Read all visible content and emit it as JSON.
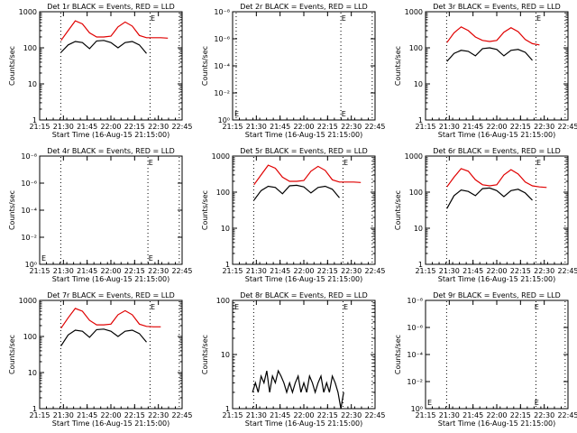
{
  "chart_data": [
    {
      "type": "line",
      "title": "Det 1r BLACK = Events, RED = LLD",
      "ylabel": "Counts/sec",
      "xlabel": "Start Time (16-Aug-15 21:15:00)",
      "scale": "log",
      "ylim": [
        1,
        1000
      ],
      "yticks": [
        "1",
        "10",
        "100",
        "1000"
      ],
      "xticks": [
        "21:15",
        "21:30",
        "21:45",
        "22:00",
        "22:15",
        "22:30",
        "22:45"
      ],
      "xlim": [
        0,
        100
      ],
      "vlines": [
        14.8,
        77.5,
        98
      ],
      "marker": "E",
      "marker_x": 77.2,
      "series": [
        {
          "name": "RED = LLD",
          "color": "#e00000",
          "x": [
            0,
            5,
            10,
            15,
            20,
            25,
            30,
            35,
            40,
            45,
            50,
            55,
            60,
            65,
            70,
            75,
            80,
            85,
            90,
            95,
            100
          ],
          "y": [
            null,
            null,
            null,
            160,
            300,
            560,
            460,
            260,
            200,
            200,
            210,
            380,
            520,
            400,
            220,
            190,
            190,
            190,
            185,
            null,
            null
          ]
        },
        {
          "name": "BLACK = Events",
          "color": "#000000",
          "x": [
            0,
            5,
            10,
            15,
            20,
            25,
            30,
            35,
            40,
            45,
            50,
            55,
            60,
            65,
            70,
            75,
            80,
            85,
            90,
            95,
            100
          ],
          "y": [
            null,
            null,
            null,
            75,
            120,
            150,
            140,
            95,
            155,
            160,
            140,
            100,
            140,
            150,
            120,
            70,
            null,
            null,
            null,
            null,
            null
          ]
        }
      ]
    },
    {
      "type": "line",
      "title": "Det 2r BLACK = Events, RED = LLD",
      "ylabel": "Counts/sec",
      "xlabel": "Start Time (16-Aug-15 21:15:00)",
      "scale": "exp",
      "yticks": [
        "10⁰",
        "10⁻²",
        "10⁻⁴",
        "10⁻⁶",
        "10⁻⁸"
      ],
      "xticks": [
        "21:15",
        "21:30",
        "21:45",
        "22:00",
        "22:15",
        "22:30",
        "22:45"
      ],
      "xlim": [
        0,
        100
      ],
      "vlines": [
        2.5,
        76,
        98
      ],
      "marker": "E",
      "marker_x": 75.8,
      "marker_left": "E",
      "series": []
    },
    {
      "type": "line",
      "title": "Det 3r BLACK = Events, RED = LLD",
      "ylabel": "Counts/sec",
      "xlabel": "Start Time (16-Aug-15 21:15:00)",
      "scale": "log",
      "ylim": [
        1,
        1000
      ],
      "yticks": [
        "1",
        "10",
        "100",
        "1000"
      ],
      "xticks": [
        "21:15",
        "21:30",
        "21:45",
        "22:00",
        "22:15",
        "22:30",
        "22:45"
      ],
      "xlim": [
        0,
        100
      ],
      "vlines": [
        14.8,
        77.5,
        98
      ],
      "marker": "E",
      "marker_x": 77.2,
      "series": [
        {
          "name": "RED = LLD",
          "color": "#e00000",
          "x": [
            0,
            5,
            10,
            15,
            20,
            25,
            30,
            35,
            40,
            45,
            50,
            55,
            60,
            65,
            70,
            75,
            80,
            85,
            90,
            95,
            100
          ],
          "y": [
            null,
            null,
            null,
            140,
            260,
            380,
            300,
            200,
            160,
            150,
            160,
            270,
            360,
            280,
            170,
            130,
            120,
            null,
            null,
            null,
            null
          ]
        },
        {
          "name": "BLACK = Events",
          "color": "#000000",
          "x": [
            0,
            5,
            10,
            15,
            20,
            25,
            30,
            35,
            40,
            45,
            50,
            55,
            60,
            65,
            70,
            75,
            80,
            85,
            90,
            95,
            100
          ],
          "y": [
            null,
            null,
            null,
            42,
            70,
            85,
            80,
            60,
            95,
            100,
            90,
            60,
            85,
            90,
            75,
            45,
            null,
            null,
            null,
            null,
            null
          ]
        }
      ]
    },
    {
      "type": "line",
      "title": "Det 4r BLACK = Events, RED = LLD",
      "ylabel": "Counts/sec",
      "xlabel": "Start Time (16-Aug-15 21:15:00)",
      "scale": "exp",
      "yticks": [
        "10⁰",
        "10⁻²",
        "10⁻⁴",
        "10⁻⁶",
        "10⁻⁸"
      ],
      "xticks": [
        "21:15",
        "21:30",
        "21:45",
        "22:00",
        "22:15",
        "22:30",
        "22:45"
      ],
      "xlim": [
        0,
        100
      ],
      "vlines": [
        14.8,
        76,
        98
      ],
      "marker": "E",
      "marker_x": 75.8,
      "marker_left": "E",
      "series": []
    },
    {
      "type": "line",
      "title": "Det 5r BLACK = Events, RED = LLD",
      "ylabel": "Counts/sec",
      "xlabel": "Start Time (16-Aug-15 21:15:00)",
      "scale": "log",
      "ylim": [
        1,
        1000
      ],
      "yticks": [
        "1",
        "10",
        "100",
        "1000"
      ],
      "xticks": [
        "21:15",
        "21:30",
        "21:45",
        "22:00",
        "22:15",
        "22:30",
        "22:45"
      ],
      "xlim": [
        0,
        100
      ],
      "vlines": [
        14.8,
        77.5,
        98
      ],
      "marker": "E",
      "marker_x": 77.2,
      "series": [
        {
          "name": "RED = LLD",
          "color": "#e00000",
          "x": [
            0,
            5,
            10,
            15,
            20,
            25,
            30,
            35,
            40,
            45,
            50,
            55,
            60,
            65,
            70,
            75,
            80,
            85,
            90,
            95,
            100
          ],
          "y": [
            null,
            null,
            null,
            160,
            300,
            560,
            460,
            260,
            200,
            200,
            210,
            380,
            520,
            400,
            220,
            190,
            190,
            190,
            185,
            null,
            null
          ]
        },
        {
          "name": "BLACK = Events",
          "color": "#000000",
          "x": [
            0,
            5,
            10,
            15,
            20,
            25,
            30,
            35,
            40,
            45,
            50,
            55,
            60,
            65,
            70,
            75,
            80,
            85,
            90,
            95,
            100
          ],
          "y": [
            null,
            null,
            null,
            60,
            110,
            145,
            135,
            90,
            150,
            155,
            140,
            95,
            135,
            145,
            120,
            70,
            null,
            null,
            null,
            null,
            null
          ]
        }
      ]
    },
    {
      "type": "line",
      "title": "Det 6r BLACK = Events, RED = LLD",
      "ylabel": "Counts/sec",
      "xlabel": "Start Time (16-Aug-15 21:15:00)",
      "scale": "log",
      "ylim": [
        1,
        1000
      ],
      "yticks": [
        "1",
        "10",
        "100",
        "1000"
      ],
      "xticks": [
        "21:15",
        "21:30",
        "21:45",
        "22:00",
        "22:15",
        "22:30",
        "22:45"
      ],
      "xlim": [
        0,
        100
      ],
      "vlines": [
        14.8,
        77.5,
        98
      ],
      "marker": "E",
      "marker_x": 77.2,
      "series": [
        {
          "name": "RED = LLD",
          "color": "#e00000",
          "x": [
            0,
            5,
            10,
            15,
            20,
            25,
            30,
            35,
            40,
            45,
            50,
            55,
            60,
            65,
            70,
            75,
            80,
            85,
            90,
            95,
            100
          ],
          "y": [
            null,
            null,
            null,
            140,
            260,
            450,
            380,
            220,
            160,
            150,
            160,
            300,
            420,
            320,
            190,
            150,
            140,
            135,
            null,
            null,
            null
          ]
        },
        {
          "name": "BLACK = Events",
          "color": "#000000",
          "x": [
            0,
            5,
            10,
            15,
            20,
            25,
            30,
            35,
            40,
            45,
            50,
            55,
            60,
            65,
            70,
            75,
            80,
            85,
            90,
            95,
            100
          ],
          "y": [
            null,
            null,
            null,
            35,
            80,
            115,
            105,
            80,
            125,
            130,
            110,
            75,
            110,
            120,
            95,
            60,
            null,
            null,
            null,
            null,
            null
          ]
        }
      ]
    },
    {
      "type": "line",
      "title": "Det 7r BLACK = Events, RED = LLD",
      "ylabel": "Counts/sec",
      "xlabel": "Start Time (16-Aug-15 21:15:00)",
      "scale": "log",
      "ylim": [
        1,
        1000
      ],
      "yticks": [
        "1",
        "10",
        "100",
        "1000"
      ],
      "xticks": [
        "21:15",
        "21:30",
        "21:45",
        "22:00",
        "22:15",
        "22:30",
        "22:45"
      ],
      "xlim": [
        0,
        100
      ],
      "vlines": [
        14.8,
        77.5,
        98
      ],
      "marker": "E",
      "marker_x": 77.2,
      "series": [
        {
          "name": "RED = LLD",
          "color": "#e00000",
          "x": [
            0,
            5,
            10,
            15,
            20,
            25,
            30,
            35,
            40,
            45,
            50,
            55,
            60,
            65,
            70,
            75,
            80,
            85,
            90,
            95,
            100
          ],
          "y": [
            null,
            null,
            null,
            170,
            330,
            600,
            500,
            280,
            210,
            210,
            220,
            400,
            520,
            400,
            220,
            190,
            185,
            185,
            null,
            null,
            null
          ]
        },
        {
          "name": "BLACK = Events",
          "color": "#000000",
          "x": [
            0,
            5,
            10,
            15,
            20,
            25,
            30,
            35,
            40,
            45,
            50,
            55,
            60,
            65,
            70,
            75,
            80,
            85,
            90,
            95,
            100
          ],
          "y": [
            null,
            null,
            null,
            55,
            110,
            150,
            140,
            95,
            155,
            160,
            140,
            100,
            140,
            150,
            120,
            70,
            null,
            null,
            null,
            null,
            null
          ]
        }
      ]
    },
    {
      "type": "line",
      "title": "Det 8r BLACK = Events, RED = LLD",
      "ylabel": "Counts/sec",
      "xlabel": "Start Time (16-Aug-15 21:15:00)",
      "scale": "log",
      "ylim": [
        1,
        100
      ],
      "yticks": [
        "1",
        "10",
        "100"
      ],
      "xticks": [
        "21:15",
        "21:30",
        "21:45",
        "22:00",
        "22:15",
        "22:30",
        "22:45"
      ],
      "xlim": [
        0,
        100
      ],
      "vlines": [
        14.8,
        77.5,
        98
      ],
      "marker": "E",
      "marker_x": 77.2,
      "marker_left": "E",
      "series": [
        {
          "name": "BLACK = Events",
          "color": "#000000",
          "x": [
            14,
            16,
            18,
            20,
            22,
            24,
            26,
            28,
            30,
            32,
            34,
            36,
            38,
            40,
            42,
            44,
            46,
            48,
            50,
            52,
            54,
            56,
            58,
            60,
            62,
            64,
            66,
            68,
            70,
            72,
            74,
            76,
            78
          ],
          "y": [
            2,
            3,
            2,
            4,
            3,
            5,
            2,
            4,
            3,
            5,
            4,
            3,
            2,
            3,
            2,
            3,
            4,
            2,
            3,
            2,
            4,
            3,
            2,
            3,
            4,
            2,
            3,
            2,
            4,
            3,
            2,
            1,
            2
          ]
        }
      ]
    },
    {
      "type": "line",
      "title": "Det 9r BLACK = Events, RED = LLD",
      "ylabel": "Counts/sec",
      "xlabel": "Start Time (16-Aug-15 21:15:00)",
      "scale": "exp",
      "yticks": [
        "10⁰",
        "10⁻²",
        "10⁻⁴",
        "10⁻⁶",
        "10⁻⁸"
      ],
      "xticks": [
        "21:15",
        "21:30",
        "21:45",
        "22:00",
        "22:15",
        "22:30",
        "22:45"
      ],
      "xlim": [
        0,
        100
      ],
      "vlines": [
        14.8,
        77.5,
        98
      ],
      "marker": "E",
      "marker_x": 75.8,
      "marker_left": "E",
      "series": []
    }
  ]
}
